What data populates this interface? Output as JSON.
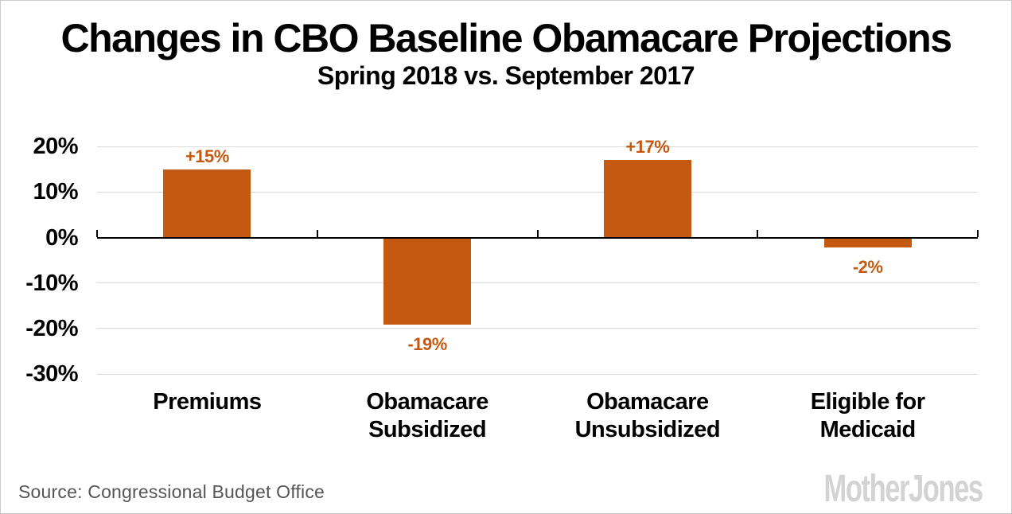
{
  "chart_data": {
    "type": "bar",
    "title": "Changes in CBO Baseline Obamacare Projections",
    "subtitle": "Spring 2018 vs. September 2017",
    "categories": [
      "Premiums",
      "Obamacare Subsidized",
      "Obamacare Unsubsidized",
      "Eligible for Medicaid"
    ],
    "category_lines": [
      [
        "Premiums"
      ],
      [
        "Obamacare",
        "Subsidized"
      ],
      [
        "Obamacare",
        "Unsubsidized"
      ],
      [
        "Eligible for",
        "Medicaid"
      ]
    ],
    "values": [
      15,
      -19,
      17,
      -2
    ],
    "value_labels": [
      "+15%",
      "-19%",
      "+17%",
      "-2%"
    ],
    "unit": "percent",
    "xlabel": "",
    "ylabel": "",
    "ylim": [
      -30,
      20
    ],
    "y_ticks": [
      20,
      10,
      0,
      -10,
      -20,
      -30
    ],
    "y_tick_labels": [
      "20%",
      "10%",
      "0%",
      "-10%",
      "-20%",
      "-30%"
    ],
    "grid": "horizontal gridlines at every y tick except 0; 0 line drawn as solid black axis with upward category ticks",
    "legend": "none",
    "colors": {
      "bar": "#C45A11",
      "value_label": "#C45A11",
      "gridline": "#D9D9D9",
      "axis": "#000000",
      "text": "#000000"
    }
  },
  "footer": {
    "source": "Source: Congressional Budget Office",
    "logo": "MotherJones"
  },
  "page": {
    "background": "#FFFFFF",
    "border": "#CCCCCC",
    "source_text_color": "#555555",
    "logo_color": "#D3D3D3"
  }
}
